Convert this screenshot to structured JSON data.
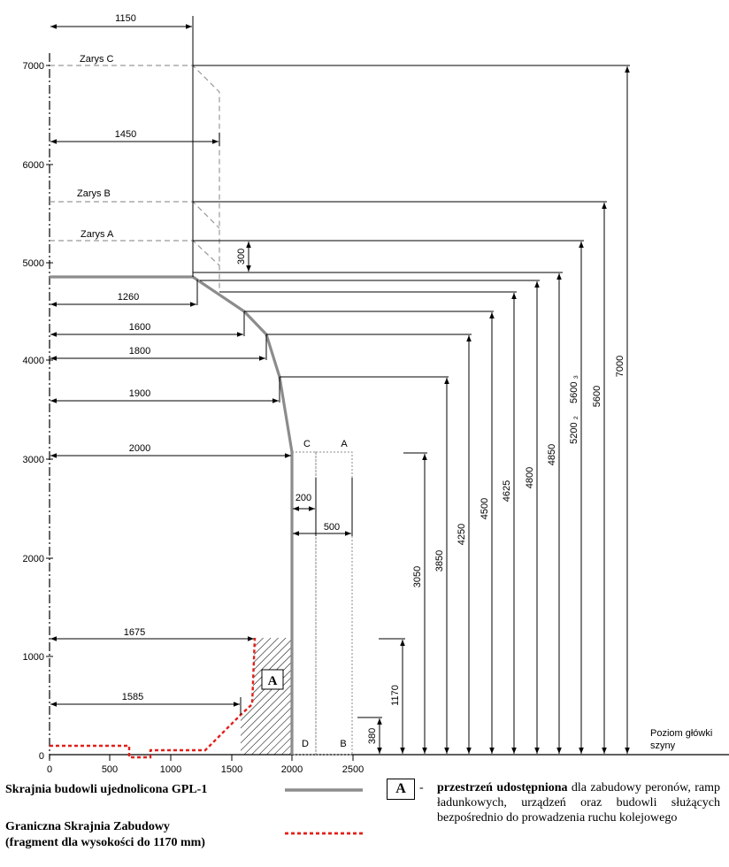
{
  "diagram": {
    "y_axis_ticks": [
      "7000",
      "6000",
      "5000",
      "4000",
      "3000",
      "2000",
      "1000",
      "0"
    ],
    "x_axis_ticks": [
      "0",
      "500",
      "1000",
      "1500",
      "2000",
      "2500"
    ],
    "outline_labels": {
      "zarys_c": "Zarys C",
      "zarys_b": "Zarys B",
      "zarys_a": "Zarys A"
    },
    "zone_labels": {
      "c": "C",
      "a": "A",
      "d": "D",
      "b": "B"
    },
    "horizontal_dims": {
      "d1150": "1150",
      "d1450": "1450",
      "d1260": "1260",
      "d1600": "1600",
      "d1800": "1800",
      "d1900": "1900",
      "d2000": "2000",
      "d200": "200",
      "d500": "500",
      "d1675": "1675",
      "d1585": "1585"
    },
    "vertical_dims": {
      "d300": "300",
      "d7000": "7000",
      "d5600": "5600",
      "d5600b": "5600 ₃",
      "d5200b": "5200 ₂",
      "d4850": "4850",
      "d4800": "4800",
      "d4625": "4625",
      "d4500": "4500",
      "d4250": "4250",
      "d3850": "3850",
      "d3050": "3050",
      "d1170": "1170",
      "d380": "380"
    },
    "rail_level": {
      "line1": "Poziom główki",
      "line2": "szyny"
    },
    "hatched_zone_marker": "A"
  },
  "legend": {
    "gpl_label": "Skrajnia budowli ujednolicona GPL-1",
    "gsz_label_line1": "Graniczna Skrajnia Zabudowy",
    "gsz_label_line2": "(fragment dla wysokości do 1170 mm)",
    "a_box": "A",
    "dash": "-",
    "a_desc_bold": "przestrzeń udostępniona",
    "a_desc_rest": " dla zabudowy peronów, ramp ładunkowych, urządzeń oraz budowli służących bezpośrednio do prowadzenia ruchu kolejowego"
  },
  "colors": {
    "gpl_line": "#8c8c8c",
    "gsz_line": "#e0201a",
    "dashed_outline": "#999999"
  }
}
